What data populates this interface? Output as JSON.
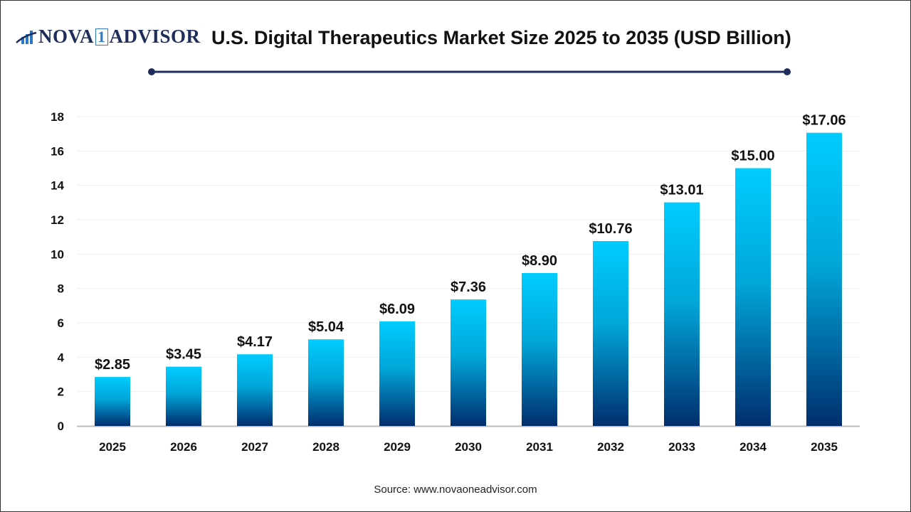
{
  "logo": {
    "text_left": "NOVA",
    "text_one": "1",
    "text_right": "ADVISOR"
  },
  "title": "U.S. Digital Therapeutics Market Size 2025 to 2035 (USD Billion)",
  "source": "Source: www.novaoneadvisor.com",
  "colors": {
    "bar_top": "#00CCFF",
    "bar_bottom": "#002E6E",
    "title_rule": "#1f2d5c",
    "grid": "#eeeeee"
  },
  "chart_data": {
    "type": "bar",
    "title": "U.S. Digital Therapeutics Market Size 2025 to 2035 (USD Billion)",
    "xlabel": "",
    "ylabel": "",
    "categories": [
      "2025",
      "2026",
      "2027",
      "2028",
      "2029",
      "2030",
      "2031",
      "2032",
      "2033",
      "2034",
      "2035"
    ],
    "values": [
      2.85,
      3.45,
      4.17,
      5.04,
      6.09,
      7.36,
      8.9,
      10.76,
      13.01,
      15.0,
      17.06
    ],
    "data_labels": [
      "$2.85",
      "$3.45",
      "$4.17",
      "$5.04",
      "$6.09",
      "$7.36",
      "$8.90",
      "$10.76",
      "$13.01",
      "$15.00",
      "$17.06"
    ],
    "ylim": [
      0,
      18
    ],
    "yticks": [
      "0",
      "2",
      "4",
      "6",
      "8",
      "10",
      "12",
      "14",
      "16",
      "18"
    ],
    "grid": true,
    "legend": "none"
  }
}
